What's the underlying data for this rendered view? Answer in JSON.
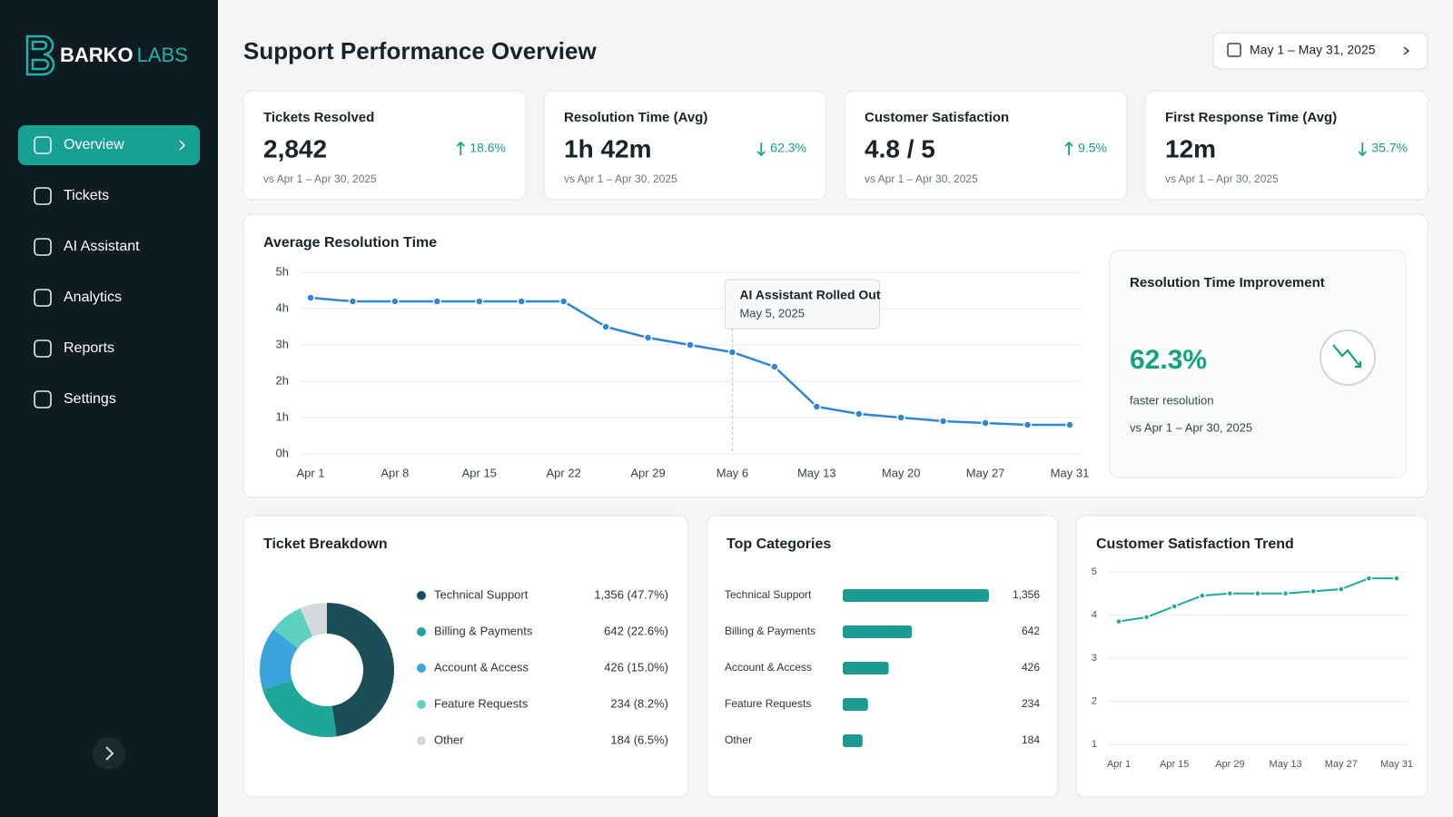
{
  "sidebar": {
    "brand": [
      "BARKO",
      "LABS"
    ],
    "nav": [
      {
        "label": "Overview",
        "active": true
      },
      {
        "label": "Tickets"
      },
      {
        "label": "AI Assistant"
      },
      {
        "label": "Analytics"
      },
      {
        "label": "Reports"
      },
      {
        "label": "Settings"
      }
    ]
  },
  "header": {
    "title": "Support Performance Overview",
    "date_range": "May 1 – May 31, 2025"
  },
  "kpis": [
    {
      "title": "Tickets Resolved",
      "value": "2,842",
      "change": "18.6%",
      "direction": "up",
      "note": "vs Apr 1 – Apr 30, 2025"
    },
    {
      "title": "Resolution Time (Avg)",
      "value": "1h 42m",
      "change": "62.3%",
      "direction": "down",
      "note": "vs Apr 1 – Apr 30, 2025"
    },
    {
      "title": "Customer Satisfaction",
      "value": "4.8 / 5",
      "change": "9.5%",
      "direction": "up",
      "note": "vs Apr 1 – Apr 30, 2025"
    },
    {
      "title": "First Response Time (Avg)",
      "value": "12m",
      "change": "35.7%",
      "direction": "down",
      "note": "vs Apr 1 – Apr 30, 2025"
    }
  ],
  "change_color": "#14a37f",
  "improvement": {
    "title": "Resolution Time Improvement",
    "value": "62.3%",
    "caption": "faster resolution",
    "note": "vs Apr 1 – Apr 30, 2025"
  },
  "chart_data": [
    {
      "type": "line",
      "title": "Average Resolution Time",
      "categories": [
        "Apr 1",
        null,
        "Apr 8",
        null,
        "Apr 15",
        null,
        "Apr 22",
        null,
        "Apr 29",
        null,
        "May 6",
        null,
        "May 13",
        null,
        "May 20",
        null,
        "May 27",
        null,
        "May 31"
      ],
      "values": [
        4.3,
        4.2,
        4.2,
        4.2,
        4.2,
        4.2,
        4.2,
        3.5,
        3.2,
        3.0,
        2.8,
        2.4,
        1.3,
        1.1,
        1.0,
        0.9,
        0.85,
        0.8,
        0.8
      ],
      "color": "#2f86d6",
      "ylim": [
        0,
        5
      ],
      "yticks": [
        {
          "value": 0,
          "label": "0h"
        },
        {
          "value": 1,
          "label": "1h"
        },
        {
          "value": 2,
          "label": "2h"
        },
        {
          "value": 3,
          "label": "3h"
        },
        {
          "value": 4,
          "label": "4h"
        },
        {
          "value": 5,
          "label": "5h"
        }
      ],
      "grid": true,
      "annotation": {
        "title": "AI Assistant Rolled Out",
        "subtitle": "May 5, 2025"
      }
    },
    {
      "type": "donut",
      "title": "Ticket Breakdown",
      "categories": [
        "Technical Support",
        "Billing & Payments",
        "Account & Access",
        "Feature Requests",
        "Other"
      ],
      "values": [
        1356,
        642,
        426,
        234,
        184
      ],
      "value_labels": [
        "1,356 (47.7%)",
        "642 (22.6%)",
        "426 (15.0%)",
        "234 (8.2%)",
        "184 (6.5%)"
      ],
      "colors": [
        "#1b4f57",
        "#1fa69a",
        "#3aa5dc",
        "#5fcfc0",
        "#d5d9dc"
      ]
    },
    {
      "type": "hbar",
      "title": "Top Categories",
      "categories": [
        "Technical Support",
        "Billing & Payments",
        "Account & Access",
        "Feature Requests",
        "Other"
      ],
      "values": [
        1356,
        642,
        426,
        234,
        184
      ],
      "value_labels": [
        "1,356",
        "642",
        "426",
        "234",
        "184"
      ],
      "color": "#1a9c93"
    },
    {
      "type": "line",
      "title": "Customer Satisfaction Trend",
      "categories": [
        "Apr 1",
        null,
        "Apr 15",
        null,
        "Apr 29",
        null,
        "May 13",
        null,
        "May 27",
        null,
        "May 31"
      ],
      "values": [
        3.85,
        3.95,
        4.2,
        4.45,
        4.5,
        4.5,
        4.5,
        4.55,
        4.6,
        4.85,
        4.85
      ],
      "color": "#1fa89a",
      "ylim": [
        1,
        5
      ],
      "yticks": [
        1,
        2,
        3,
        4,
        5
      ],
      "grid": true
    }
  ]
}
